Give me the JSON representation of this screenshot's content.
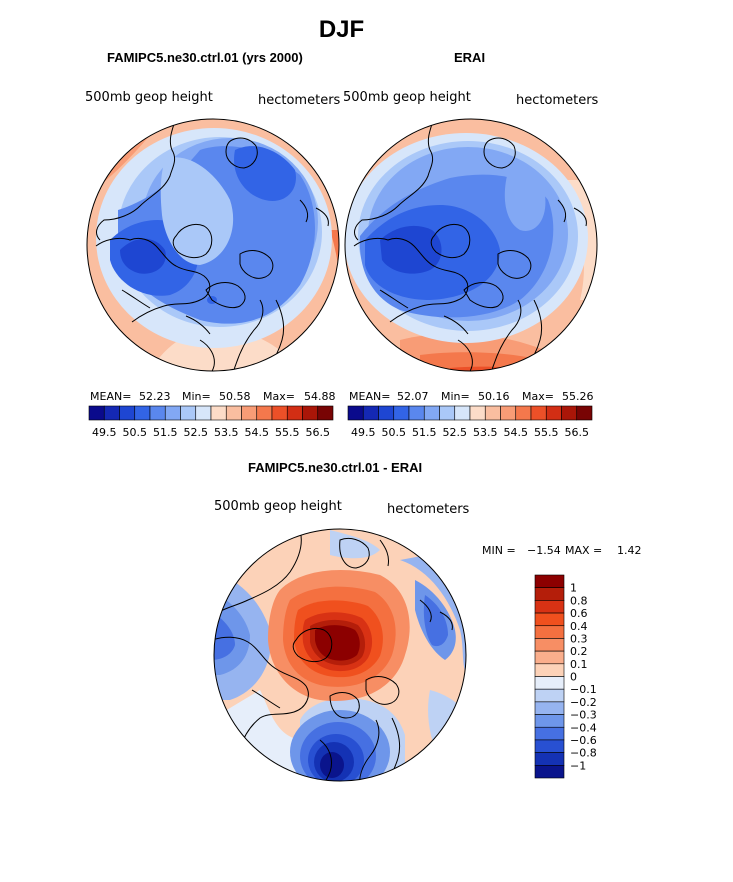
{
  "page": {
    "title": "DJF",
    "top_left": {
      "title": "FAMIPC5.ne30.ctrl.01 (yrs 2000)",
      "variable": "500mb geop height",
      "units": "hectometers",
      "stats": {
        "mean_label": "MEAN=",
        "mean": "52.23",
        "min_label": "Min=",
        "min": "50.58",
        "max_label": "Max=",
        "max": "54.88"
      }
    },
    "top_right": {
      "title": "ERAI",
      "variable": "500mb geop height",
      "units": "hectometers",
      "stats": {
        "mean_label": "MEAN=",
        "mean": "52.07",
        "min_label": "Min=",
        "min": "50.16",
        "max_label": "Max=",
        "max": "55.26"
      }
    },
    "bottom": {
      "title": "FAMIPC5.ne30.ctrl.01 - ERAI",
      "variable": "500mb geop height",
      "units": "hectometers",
      "minmax": {
        "min_label": "MIN =",
        "min": "−1.54",
        "max_label": "MAX =",
        "max": "1.42"
      }
    }
  },
  "chart_data": [
    {
      "type": "heatmap",
      "projection": "north polar stereographic",
      "title": "FAMIPC5.ne30.ctrl.01 (yrs 2000)",
      "variable": "500mb geop height",
      "units": "hectometers",
      "mean": 52.23,
      "min": 50.58,
      "max": 54.88,
      "colorbar_levels": [
        49.5,
        50,
        50.5,
        51,
        51.5,
        52,
        52.5,
        53,
        53.5,
        54,
        54.5,
        55,
        55.5,
        56,
        56.5
      ],
      "colorbar_tick_labels": [
        "49.5",
        "50.5",
        "51.5",
        "52.5",
        "53.5",
        "54.5",
        "55.5",
        "56.5"
      ],
      "colors": [
        "#0a0a8c",
        "#1428b4",
        "#1e46d2",
        "#3264e6",
        "#5a87ee",
        "#82a8f4",
        "#aac8f8",
        "#d7e6fa",
        "#fcdcc8",
        "#fabea0",
        "#f89c76",
        "#f4784c",
        "#ec5028",
        "#d22e14",
        "#aa1608",
        "#780404"
      ]
    },
    {
      "type": "heatmap",
      "projection": "north polar stereographic",
      "title": "ERAI",
      "variable": "500mb geop height",
      "units": "hectometers",
      "mean": 52.07,
      "min": 50.16,
      "max": 55.26,
      "colorbar_levels": [
        49.5,
        50,
        50.5,
        51,
        51.5,
        52,
        52.5,
        53,
        53.5,
        54,
        54.5,
        55,
        55.5,
        56,
        56.5
      ],
      "colorbar_tick_labels": [
        "49.5",
        "50.5",
        "51.5",
        "52.5",
        "53.5",
        "54.5",
        "55.5",
        "56.5"
      ],
      "colors": [
        "#0a0a8c",
        "#1428b4",
        "#1e46d2",
        "#3264e6",
        "#5a87ee",
        "#82a8f4",
        "#aac8f8",
        "#d7e6fa",
        "#fcdcc8",
        "#fabea0",
        "#f89c76",
        "#f4784c",
        "#ec5028",
        "#d22e14",
        "#aa1608",
        "#780404"
      ]
    },
    {
      "type": "heatmap",
      "projection": "north polar stereographic",
      "title": "FAMIPC5.ne30.ctrl.01 - ERAI",
      "variable": "500mb geop height",
      "units": "hectometers",
      "min": -1.54,
      "max": 1.42,
      "colorbar_levels": [
        1,
        0.8,
        0.6,
        0.4,
        0.3,
        0.2,
        0.1,
        0,
        -0.1,
        -0.2,
        -0.3,
        -0.4,
        -0.6,
        -0.8,
        -1
      ],
      "colorbar_tick_labels": [
        "1",
        "0.8",
        "0.6",
        "0.4",
        "0.3",
        "0.2",
        "0.1",
        "0",
        "−0.1",
        "−0.2",
        "−0.3",
        "−0.4",
        "−0.6",
        "−0.8",
        "−1"
      ],
      "colors": [
        "#8c0000",
        "#b41e0a",
        "#d83214",
        "#f0501e",
        "#f47040",
        "#f78e64",
        "#faae8c",
        "#fcd2b8",
        "#e6eefa",
        "#bed2f4",
        "#96b4f0",
        "#6e96ea",
        "#4670e2",
        "#2850d2",
        "#1432b4",
        "#0a148c"
      ]
    }
  ]
}
